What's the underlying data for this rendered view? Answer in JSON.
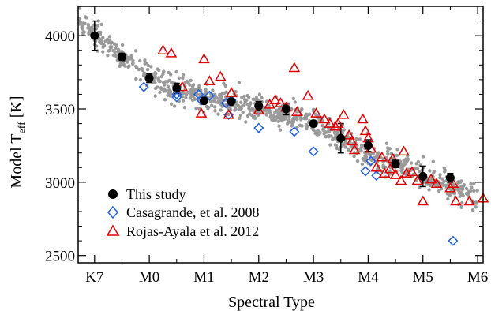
{
  "chart_data": {
    "type": "scatter",
    "xlabel": "Spectral Type",
    "ylabel": {
      "main": "Model T",
      "sub": "eff",
      "unit": " [K]"
    },
    "xlim": [
      -0.3,
      7.1
    ],
    "ylim": [
      2450,
      4200
    ],
    "x_ticks": [
      {
        "value": 0,
        "label": "K7"
      },
      {
        "value": 1,
        "label": "M0"
      },
      {
        "value": 2,
        "label": "M1"
      },
      {
        "value": 3,
        "label": "M2"
      },
      {
        "value": 4,
        "label": "M3"
      },
      {
        "value": 5,
        "label": "M4"
      },
      {
        "value": 6,
        "label": "M5"
      },
      {
        "value": 7,
        "label": "M6"
      }
    ],
    "y_ticks": [
      2500,
      3000,
      3500,
      4000
    ],
    "legend_position": "bottom-left",
    "colors": {
      "this_study": "#000000",
      "casagrande": "#1f5fe0",
      "rojas": "#e00000",
      "background": "#9a9a9a"
    },
    "background_points": {
      "name": "",
      "trend": [
        [
          -0.3,
          4110
        ],
        [
          0,
          4000
        ],
        [
          0.5,
          3860
        ],
        [
          1,
          3730
        ],
        [
          1.5,
          3630
        ],
        [
          2,
          3570
        ],
        [
          2.5,
          3540
        ],
        [
          3,
          3500
        ],
        [
          3.5,
          3460
        ],
        [
          4,
          3400
        ],
        [
          4.5,
          3290
        ],
        [
          5,
          3200
        ],
        [
          5.5,
          3130
        ],
        [
          6,
          3040
        ],
        [
          6.5,
          2960
        ],
        [
          7,
          2880
        ]
      ],
      "x_range": [
        -0.3,
        7.0
      ],
      "count": 900,
      "scatter_sd": 45
    },
    "series": [
      {
        "name": "This study",
        "marker": "filled-circle",
        "points": [
          {
            "x": 0.0,
            "y": 4000,
            "err": 100
          },
          {
            "x": 0.5,
            "y": 3855,
            "err": 25
          },
          {
            "x": 1.0,
            "y": 3710,
            "err": 30
          },
          {
            "x": 1.5,
            "y": 3640,
            "err": 35
          },
          {
            "x": 2.0,
            "y": 3555,
            "err": 15
          },
          {
            "x": 2.5,
            "y": 3550,
            "err": 20
          },
          {
            "x": 3.0,
            "y": 3520,
            "err": 30
          },
          {
            "x": 3.5,
            "y": 3500,
            "err": 40
          },
          {
            "x": 4.0,
            "y": 3400,
            "err": 15
          },
          {
            "x": 4.5,
            "y": 3300,
            "err": 100
          },
          {
            "x": 5.0,
            "y": 3250,
            "err": 40
          },
          {
            "x": 5.5,
            "y": 3125,
            "err": 25
          },
          {
            "x": 6.0,
            "y": 3040,
            "err": 70
          },
          {
            "x": 6.5,
            "y": 3030,
            "err": 30
          }
        ]
      },
      {
        "name": "Casagrande, et al. 2008",
        "marker": "open-diamond",
        "points": [
          {
            "x": 0.9,
            "y": 3650
          },
          {
            "x": 1.5,
            "y": 3600
          },
          {
            "x": 1.5,
            "y": 3580
          },
          {
            "x": 1.9,
            "y": 3600
          },
          {
            "x": 1.95,
            "y": 3560
          },
          {
            "x": 2.1,
            "y": 3590
          },
          {
            "x": 2.4,
            "y": 3540
          },
          {
            "x": 2.45,
            "y": 3460
          },
          {
            "x": 2.5,
            "y": 3560
          },
          {
            "x": 3.0,
            "y": 3370
          },
          {
            "x": 3.65,
            "y": 3345
          },
          {
            "x": 4.0,
            "y": 3210
          },
          {
            "x": 4.95,
            "y": 3075
          },
          {
            "x": 5.05,
            "y": 3145
          },
          {
            "x": 5.15,
            "y": 3045
          },
          {
            "x": 6.55,
            "y": 2600
          }
        ]
      },
      {
        "name": "Rojas-Ayala et al. 2012",
        "marker": "open-triangle",
        "points": [
          {
            "x": 1.25,
            "y": 3900
          },
          {
            "x": 1.4,
            "y": 3880
          },
          {
            "x": 2.0,
            "y": 3840
          },
          {
            "x": 1.6,
            "y": 3650
          },
          {
            "x": 2.1,
            "y": 3690
          },
          {
            "x": 2.3,
            "y": 3720
          },
          {
            "x": 1.95,
            "y": 3470
          },
          {
            "x": 2.45,
            "y": 3460
          },
          {
            "x": 2.5,
            "y": 3610
          },
          {
            "x": 3.0,
            "y": 3490
          },
          {
            "x": 3.2,
            "y": 3530
          },
          {
            "x": 3.3,
            "y": 3560
          },
          {
            "x": 3.4,
            "y": 3540
          },
          {
            "x": 3.5,
            "y": 3510
          },
          {
            "x": 3.65,
            "y": 3780
          },
          {
            "x": 3.7,
            "y": 3480
          },
          {
            "x": 3.9,
            "y": 3590
          },
          {
            "x": 4.05,
            "y": 3470
          },
          {
            "x": 4.2,
            "y": 3430
          },
          {
            "x": 4.3,
            "y": 3400
          },
          {
            "x": 4.4,
            "y": 3380
          },
          {
            "x": 4.45,
            "y": 3400
          },
          {
            "x": 4.55,
            "y": 3460
          },
          {
            "x": 4.65,
            "y": 3320
          },
          {
            "x": 4.7,
            "y": 3280
          },
          {
            "x": 4.75,
            "y": 3220
          },
          {
            "x": 4.9,
            "y": 3430
          },
          {
            "x": 4.95,
            "y": 3350
          },
          {
            "x": 5.0,
            "y": 3300
          },
          {
            "x": 5.05,
            "y": 3230
          },
          {
            "x": 5.15,
            "y": 3100
          },
          {
            "x": 5.25,
            "y": 3170
          },
          {
            "x": 5.3,
            "y": 3060
          },
          {
            "x": 5.4,
            "y": 3090
          },
          {
            "x": 5.45,
            "y": 3160
          },
          {
            "x": 5.5,
            "y": 3050
          },
          {
            "x": 5.6,
            "y": 3010
          },
          {
            "x": 5.65,
            "y": 3210
          },
          {
            "x": 5.7,
            "y": 3060
          },
          {
            "x": 5.8,
            "y": 3070
          },
          {
            "x": 5.9,
            "y": 3010
          },
          {
            "x": 6.0,
            "y": 2870
          },
          {
            "x": 6.15,
            "y": 3020
          },
          {
            "x": 6.25,
            "y": 2990
          },
          {
            "x": 6.5,
            "y": 2960
          },
          {
            "x": 6.55,
            "y": 2990
          },
          {
            "x": 6.6,
            "y": 2870
          },
          {
            "x": 6.85,
            "y": 2870
          },
          {
            "x": 7.1,
            "y": 2890
          }
        ]
      }
    ]
  }
}
